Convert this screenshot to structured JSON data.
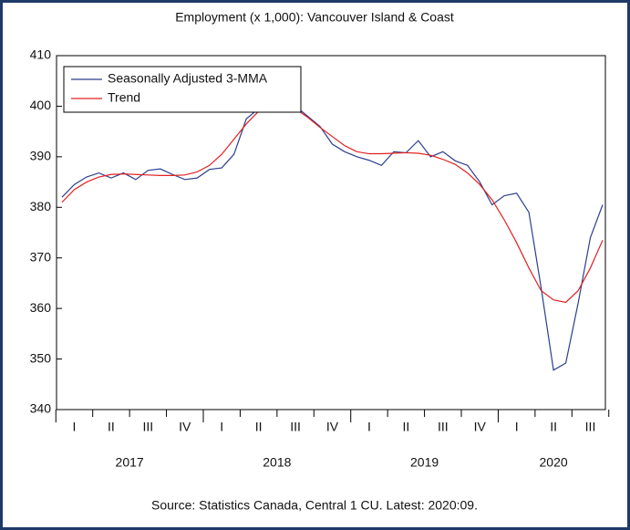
{
  "chart_data": {
    "type": "line",
    "title": "Employment (x 1,000): Vancouver Island & Coast",
    "source": "Source:  Statistics Canada, Central 1 CU. Latest: 2020:09.",
    "categories": [
      null,
      "I",
      null,
      null,
      "II",
      null,
      null,
      "III",
      null,
      null,
      "IV",
      null,
      null,
      "I",
      null,
      null,
      "II",
      null,
      null,
      "III",
      null,
      null,
      "IV",
      null,
      null,
      "I",
      null,
      null,
      "II",
      null,
      null,
      "III",
      null,
      null,
      "IV",
      null,
      null,
      "I",
      null,
      null,
      "II",
      null,
      null,
      "III",
      null
    ],
    "years": [
      "2017",
      "2018",
      "2019",
      "2020"
    ],
    "series": [
      {
        "name": "Seasonally Adjusted 3-MMA",
        "color": "#2b3f8f",
        "values": [
          382,
          384.5,
          386,
          386.8,
          385.8,
          386.8,
          385.5,
          387.3,
          387.6,
          386.5,
          385.5,
          385.8,
          387.5,
          387.8,
          390.5,
          397.5,
          399.5,
          400.5,
          401,
          400,
          398,
          396,
          392.5,
          391,
          390,
          389.3,
          388.3,
          391,
          390.8,
          393.2,
          390,
          391,
          389.2,
          388.3,
          385,
          380.5,
          382.3,
          382.8,
          379,
          364,
          347.8,
          349.2,
          361,
          374,
          380.5
        ]
      },
      {
        "name": "Trend",
        "color": "#e02020",
        "values": [
          381,
          383.5,
          385,
          386,
          386.5,
          386.6,
          386.5,
          386.4,
          386.3,
          386.3,
          386.4,
          387,
          388.3,
          390.5,
          393.5,
          396.5,
          399,
          400.5,
          400.5,
          399.5,
          397.8,
          395.8,
          394,
          392.2,
          391,
          390.6,
          390.6,
          390.7,
          390.8,
          390.7,
          390.3,
          389.5,
          388.5,
          386.8,
          384.5,
          381.5,
          377.5,
          373,
          368,
          363.5,
          361.7,
          361.2,
          363.5,
          368,
          373.5
        ]
      }
    ],
    "ylim": [
      340,
      410
    ],
    "yticks": [
      340,
      350,
      360,
      370,
      380,
      390,
      400,
      410
    ],
    "legend": "upper-left"
  }
}
